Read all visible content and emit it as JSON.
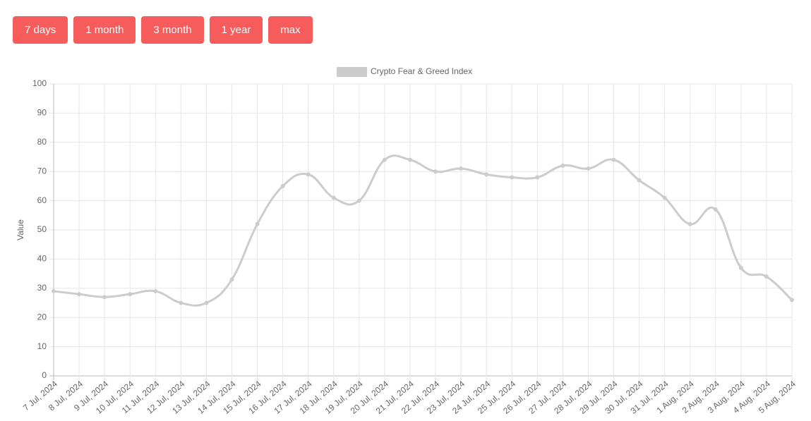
{
  "buttons": [
    "7 days",
    "1 month",
    "3 month",
    "1 year",
    "max"
  ],
  "chart_data": {
    "type": "line",
    "categories": [
      "7 Jul, 2024",
      "8 Jul, 2024",
      "9 Jul, 2024",
      "10 Jul, 2024",
      "11 Jul, 2024",
      "12 Jul, 2024",
      "13 Jul, 2024",
      "14 Jul, 2024",
      "15 Jul, 2024",
      "16 Jul, 2024",
      "17 Jul, 2024",
      "18 Jul, 2024",
      "19 Jul, 2024",
      "20 Jul, 2024",
      "21 Jul, 2024",
      "22 Jul, 2024",
      "23 Jul, 2024",
      "24 Jul, 2024",
      "25 Jul, 2024",
      "26 Jul, 2024",
      "27 Jul, 2024",
      "28 Jul, 2024",
      "29 Jul, 2024",
      "30 Jul, 2024",
      "31 Jul, 2024",
      "1 Aug, 2024",
      "2 Aug, 2024",
      "3 Aug, 2024",
      "4 Aug, 2024",
      "5 Aug, 2024"
    ],
    "series": [
      {
        "name": "Crypto Fear & Greed Index",
        "color": "#cccccc",
        "values": [
          29,
          28,
          27,
          28,
          29,
          25,
          25,
          33,
          52,
          65,
          69,
          61,
          60,
          74,
          74,
          70,
          71,
          69,
          68,
          68,
          72,
          71,
          74,
          67,
          61,
          52,
          57,
          37,
          34,
          26
        ]
      }
    ],
    "ylabel": "Value",
    "ylim": [
      0,
      100
    ],
    "yticks": [
      0,
      10,
      20,
      30,
      40,
      50,
      60,
      70,
      80,
      90,
      100
    ],
    "grid": true,
    "legend": "top"
  }
}
